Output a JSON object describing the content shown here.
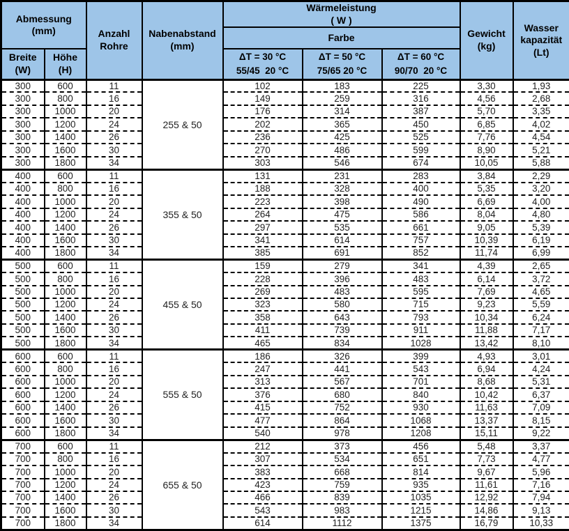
{
  "colors": {
    "header_bg": "#9EC5E8",
    "border": "#000000",
    "row_bg": "#FFFFFF",
    "text": "#222222"
  },
  "table": {
    "header": {
      "abmessung": "Abmessung\n(mm)",
      "breite": "Breite\n(W)",
      "hoehe": "Höhe\n(H)",
      "anzahl_rohre": "Anzahl\nRohre",
      "nabenabstand": "Nabenabstand\n(mm)",
      "waermeleistung": "Wärmeleistung\n( W )",
      "farbe": "Farbe",
      "dt30": "ΔT = 30 °C\n55/45  20 °C",
      "dt50": "ΔT = 50 °C\n75/65 20 °C",
      "dt60": "ΔT = 60 °C\n90/70  20 °C",
      "gewicht": "Gewicht\n(kg)",
      "wasser": "Wasser\nkapazität\n(Lt)"
    },
    "column_keys": [
      "breite",
      "hoehe",
      "rohre",
      "dt30",
      "dt50",
      "dt60",
      "gewicht",
      "wasser"
    ],
    "blocks": [
      {
        "nabenabstand": "255 & 50",
        "rows": [
          [
            "300",
            "600",
            "11",
            "102",
            "183",
            "225",
            "3,30",
            "1,93"
          ],
          [
            "300",
            "800",
            "16",
            "149",
            "259",
            "316",
            "4,56",
            "2,68"
          ],
          [
            "300",
            "1000",
            "20",
            "176",
            "314",
            "387",
            "5,70",
            "3,35"
          ],
          [
            "300",
            "1200",
            "24",
            "202",
            "365",
            "450",
            "6,85",
            "4,02"
          ],
          [
            "300",
            "1400",
            "26",
            "236",
            "425",
            "525",
            "7,76",
            "4,54"
          ],
          [
            "300",
            "1600",
            "30",
            "270",
            "486",
            "599",
            "8,90",
            "5,21"
          ],
          [
            "300",
            "1800",
            "34",
            "303",
            "546",
            "674",
            "10,05",
            "5,88"
          ]
        ]
      },
      {
        "nabenabstand": "355 & 50",
        "rows": [
          [
            "400",
            "600",
            "11",
            "131",
            "231",
            "283",
            "3,84",
            "2,29"
          ],
          [
            "400",
            "800",
            "16",
            "188",
            "328",
            "400",
            "5,35",
            "3,20"
          ],
          [
            "400",
            "1000",
            "20",
            "223",
            "398",
            "490",
            "6,69",
            "4,00"
          ],
          [
            "400",
            "1200",
            "24",
            "264",
            "475",
            "586",
            "8,04",
            "4,80"
          ],
          [
            "400",
            "1400",
            "26",
            "297",
            "535",
            "661",
            "9,05",
            "5,39"
          ],
          [
            "400",
            "1600",
            "30",
            "341",
            "614",
            "757",
            "10,39",
            "6,19"
          ],
          [
            "400",
            "1800",
            "34",
            "385",
            "691",
            "852",
            "11,74",
            "6,99"
          ]
        ]
      },
      {
        "nabenabstand": "455 & 50",
        "rows": [
          [
            "500",
            "600",
            "11",
            "159",
            "279",
            "341",
            "4,39",
            "2,65"
          ],
          [
            "500",
            "800",
            "16",
            "228",
            "396",
            "483",
            "6,14",
            "3,72"
          ],
          [
            "500",
            "1000",
            "20",
            "269",
            "483",
            "595",
            "7,69",
            "4,65"
          ],
          [
            "500",
            "1200",
            "24",
            "323",
            "580",
            "715",
            "9,23",
            "5,59"
          ],
          [
            "500",
            "1400",
            "26",
            "358",
            "643",
            "793",
            "10,34",
            "6,24"
          ],
          [
            "500",
            "1600",
            "30",
            "411",
            "739",
            "911",
            "11,88",
            "7,17"
          ],
          [
            "500",
            "1800",
            "34",
            "465",
            "834",
            "1028",
            "13,42",
            "8,10"
          ]
        ]
      },
      {
        "nabenabstand": "555 & 50",
        "rows": [
          [
            "600",
            "600",
            "11",
            "186",
            "326",
            "399",
            "4,93",
            "3,01"
          ],
          [
            "600",
            "800",
            "16",
            "247",
            "441",
            "543",
            "6,94",
            "4,24"
          ],
          [
            "600",
            "1000",
            "20",
            "313",
            "567",
            "701",
            "8,68",
            "5,31"
          ],
          [
            "600",
            "1200",
            "24",
            "376",
            "680",
            "840",
            "10,42",
            "6,37"
          ],
          [
            "600",
            "1400",
            "26",
            "415",
            "752",
            "930",
            "11,63",
            "7,09"
          ],
          [
            "600",
            "1600",
            "30",
            "477",
            "864",
            "1068",
            "13,37",
            "8,15"
          ],
          [
            "600",
            "1800",
            "34",
            "540",
            "978",
            "1208",
            "15,11",
            "9,22"
          ]
        ]
      },
      {
        "nabenabstand": "655 & 50",
        "rows": [
          [
            "700",
            "600",
            "11",
            "212",
            "373",
            "456",
            "5,48",
            "3,37"
          ],
          [
            "700",
            "800",
            "16",
            "307",
            "534",
            "651",
            "7,73",
            "4,77"
          ],
          [
            "700",
            "1000",
            "20",
            "383",
            "668",
            "814",
            "9,67",
            "5,96"
          ],
          [
            "700",
            "1200",
            "24",
            "423",
            "759",
            "935",
            "11,61",
            "7,16"
          ],
          [
            "700",
            "1400",
            "26",
            "466",
            "839",
            "1035",
            "12,92",
            "7,94"
          ],
          [
            "700",
            "1600",
            "30",
            "543",
            "983",
            "1215",
            "14,86",
            "9,13"
          ],
          [
            "700",
            "1800",
            "34",
            "614",
            "1112",
            "1375",
            "16,79",
            "10,33"
          ]
        ]
      }
    ]
  }
}
